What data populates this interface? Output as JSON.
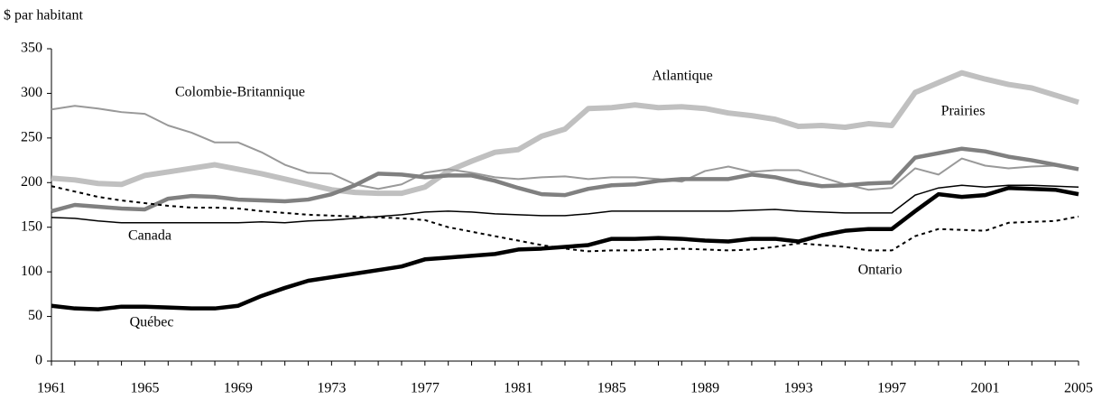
{
  "chart_data": {
    "type": "line",
    "y_label": "$ par habitant",
    "x": [
      1961,
      1962,
      1963,
      1964,
      1965,
      1966,
      1967,
      1968,
      1969,
      1970,
      1971,
      1972,
      1973,
      1974,
      1975,
      1976,
      1977,
      1978,
      1979,
      1980,
      1981,
      1982,
      1983,
      1984,
      1985,
      1986,
      1987,
      1988,
      1989,
      1990,
      1991,
      1992,
      1993,
      1994,
      1995,
      1996,
      1997,
      1998,
      1999,
      2000,
      2001,
      2002,
      2003,
      2004,
      2005
    ],
    "xlim": [
      1961,
      2005
    ],
    "xticks": [
      1961,
      1965,
      1969,
      1973,
      1977,
      1981,
      1985,
      1989,
      1993,
      1997,
      2001,
      2005
    ],
    "ylim": [
      0,
      350
    ],
    "yticks": [
      0,
      50,
      100,
      150,
      200,
      250,
      300,
      350
    ],
    "grid": false,
    "series": [
      {
        "name": "Atlantique",
        "color": "#c0c0c0",
        "values": [
          205,
          203,
          199,
          198,
          208,
          212,
          216,
          220,
          215,
          210,
          204,
          198,
          192,
          189,
          188,
          188,
          195,
          213,
          224,
          234,
          237,
          252,
          260,
          283,
          284,
          287,
          284,
          285,
          283,
          278,
          275,
          271,
          263,
          264,
          262,
          266,
          264,
          301,
          312,
          323,
          316,
          310,
          306,
          298,
          290
        ]
      },
      {
        "name": "Colombie-Britannique",
        "color": "#999999",
        "values": [
          282,
          286,
          283,
          279,
          277,
          264,
          256,
          245,
          245,
          234,
          220,
          211,
          210,
          198,
          193,
          198,
          211,
          215,
          211,
          206,
          204,
          206,
          207,
          204,
          206,
          206,
          204,
          201,
          213,
          218,
          212,
          214,
          214,
          206,
          198,
          192,
          194,
          216,
          209,
          227,
          219,
          216,
          218,
          219,
          215
        ]
      },
      {
        "name": "Prairies",
        "color": "#808080",
        "values": [
          168,
          175,
          173,
          171,
          170,
          182,
          185,
          184,
          181,
          180,
          179,
          181,
          187,
          197,
          210,
          209,
          206,
          208,
          208,
          202,
          194,
          187,
          186,
          193,
          197,
          198,
          202,
          204,
          204,
          204,
          209,
          206,
          200,
          196,
          197,
          199,
          200,
          228,
          233,
          238,
          235,
          229,
          225,
          220,
          215
        ]
      },
      {
        "name": "Canada",
        "color": "#000000",
        "values": [
          161,
          160,
          157,
          155,
          155,
          155,
          155,
          155,
          155,
          156,
          155,
          157,
          158,
          160,
          162,
          164,
          167,
          168,
          167,
          165,
          164,
          163,
          163,
          165,
          168,
          168,
          168,
          168,
          168,
          168,
          169,
          170,
          168,
          167,
          166,
          166,
          166,
          186,
          194,
          197,
          195,
          197,
          197,
          196,
          195
        ]
      },
      {
        "name": "Ontario",
        "color": "#000000",
        "values": [
          196,
          190,
          184,
          180,
          177,
          174,
          172,
          172,
          171,
          168,
          166,
          164,
          163,
          162,
          161,
          160,
          158,
          150,
          145,
          140,
          135,
          130,
          126,
          123,
          124,
          124,
          125,
          126,
          125,
          124,
          125,
          128,
          132,
          130,
          128,
          124,
          124,
          140,
          148,
          147,
          146,
          155,
          156,
          157,
          162
        ]
      },
      {
        "name": "Québec",
        "color": "#000000",
        "values": [
          62,
          59,
          58,
          61,
          61,
          60,
          59,
          59,
          62,
          73,
          82,
          90,
          94,
          98,
          102,
          106,
          114,
          116,
          118,
          120,
          125,
          126,
          128,
          130,
          137,
          137,
          138,
          137,
          135,
          134,
          137,
          137,
          134,
          141,
          146,
          148,
          148,
          168,
          187,
          184,
          186,
          194,
          193,
          192,
          187
        ]
      }
    ]
  }
}
